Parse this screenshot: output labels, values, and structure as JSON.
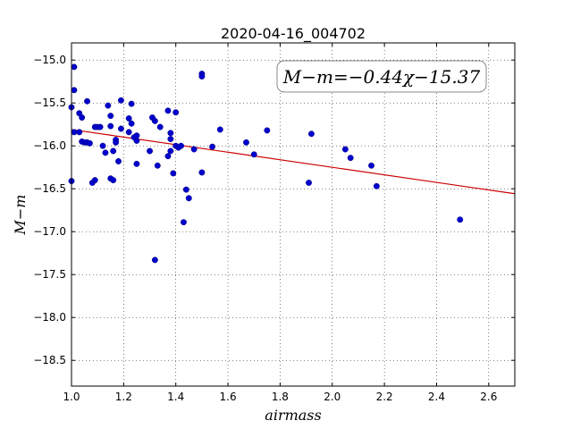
{
  "chart_data": {
    "type": "scatter",
    "title": "2020-04-16_004702",
    "xlabel": "airmass",
    "ylabel": "M−m",
    "xlim": [
      1.0,
      2.7
    ],
    "ylim": [
      -18.8,
      -14.8
    ],
    "y_inverted": true,
    "grid": true,
    "x_ticks": [
      1.0,
      1.2,
      1.4,
      1.6,
      1.8,
      2.0,
      2.2,
      2.4,
      2.6
    ],
    "x_tick_labels": [
      "1.0",
      "1.2",
      "1.4",
      "1.6",
      "1.8",
      "2.0",
      "2.2",
      "2.4",
      "2.6"
    ],
    "y_ticks": [
      -15.0,
      -15.5,
      -16.0,
      -16.5,
      -17.0,
      -17.5,
      -18.0,
      -18.5
    ],
    "y_tick_labels": [
      "−15.0",
      "−15.5",
      "−16.0",
      "−16.5",
      "−17.0",
      "−17.5",
      "−18.0",
      "−18.5"
    ],
    "annotation": "M−m=−0.44χ−15.37",
    "point_color": "#0000cc",
    "fit_color": "#cc0000",
    "fit": {
      "slope": -0.44,
      "intercept": -15.37,
      "x_range": [
        1.0,
        2.7
      ]
    },
    "series": [
      {
        "points": [
          [
            1.0,
            -15.55
          ],
          [
            1.01,
            -15.08
          ],
          [
            1.01,
            -15.35
          ],
          [
            1.0,
            -16.41
          ],
          [
            1.01,
            -15.84
          ],
          [
            1.03,
            -15.84
          ],
          [
            1.03,
            -15.62
          ],
          [
            1.04,
            -15.67
          ],
          [
            1.04,
            -15.95
          ],
          [
            1.05,
            -15.96
          ],
          [
            1.06,
            -15.48
          ],
          [
            1.06,
            -15.96
          ],
          [
            1.07,
            -15.97
          ],
          [
            1.08,
            -16.43
          ],
          [
            1.09,
            -16.4
          ],
          [
            1.09,
            -15.78
          ],
          [
            1.1,
            -15.78
          ],
          [
            1.11,
            -15.78
          ],
          [
            1.12,
            -16.0
          ],
          [
            1.13,
            -16.08
          ],
          [
            1.14,
            -15.53
          ],
          [
            1.15,
            -15.77
          ],
          [
            1.15,
            -15.65
          ],
          [
            1.15,
            -16.38
          ],
          [
            1.16,
            -16.4
          ],
          [
            1.16,
            -16.06
          ],
          [
            1.17,
            -15.93
          ],
          [
            1.17,
            -15.96
          ],
          [
            1.18,
            -16.18
          ],
          [
            1.19,
            -15.47
          ],
          [
            1.19,
            -15.8
          ],
          [
            1.22,
            -15.68
          ],
          [
            1.22,
            -15.84
          ],
          [
            1.23,
            -15.51
          ],
          [
            1.23,
            -15.74
          ],
          [
            1.24,
            -15.9
          ],
          [
            1.25,
            -15.88
          ],
          [
            1.25,
            -16.21
          ],
          [
            1.25,
            -15.94
          ],
          [
            1.3,
            -16.06
          ],
          [
            1.31,
            -15.67
          ],
          [
            1.32,
            -15.71
          ],
          [
            1.32,
            -17.33
          ],
          [
            1.33,
            -16.23
          ],
          [
            1.34,
            -15.78
          ],
          [
            1.37,
            -15.59
          ],
          [
            1.37,
            -16.12
          ],
          [
            1.38,
            -15.85
          ],
          [
            1.38,
            -15.92
          ],
          [
            1.39,
            -16.32
          ],
          [
            1.38,
            -16.06
          ],
          [
            1.4,
            -15.61
          ],
          [
            1.4,
            -16.0
          ],
          [
            1.41,
            -16.02
          ],
          [
            1.42,
            -16.0
          ],
          [
            1.43,
            -16.89
          ],
          [
            1.44,
            -16.51
          ],
          [
            1.45,
            -16.61
          ],
          [
            1.47,
            -16.04
          ],
          [
            1.5,
            -15.16
          ],
          [
            1.5,
            -15.19
          ],
          [
            1.5,
            -16.31
          ],
          [
            1.54,
            -16.01
          ],
          [
            1.57,
            -15.81
          ],
          [
            1.67,
            -15.96
          ],
          [
            1.7,
            -16.1
          ],
          [
            1.75,
            -15.82
          ],
          [
            1.91,
            -16.43
          ],
          [
            1.92,
            -15.86
          ],
          [
            2.05,
            -16.04
          ],
          [
            2.07,
            -16.14
          ],
          [
            2.15,
            -16.23
          ],
          [
            2.17,
            -16.47
          ],
          [
            2.49,
            -16.86
          ]
        ]
      }
    ]
  }
}
